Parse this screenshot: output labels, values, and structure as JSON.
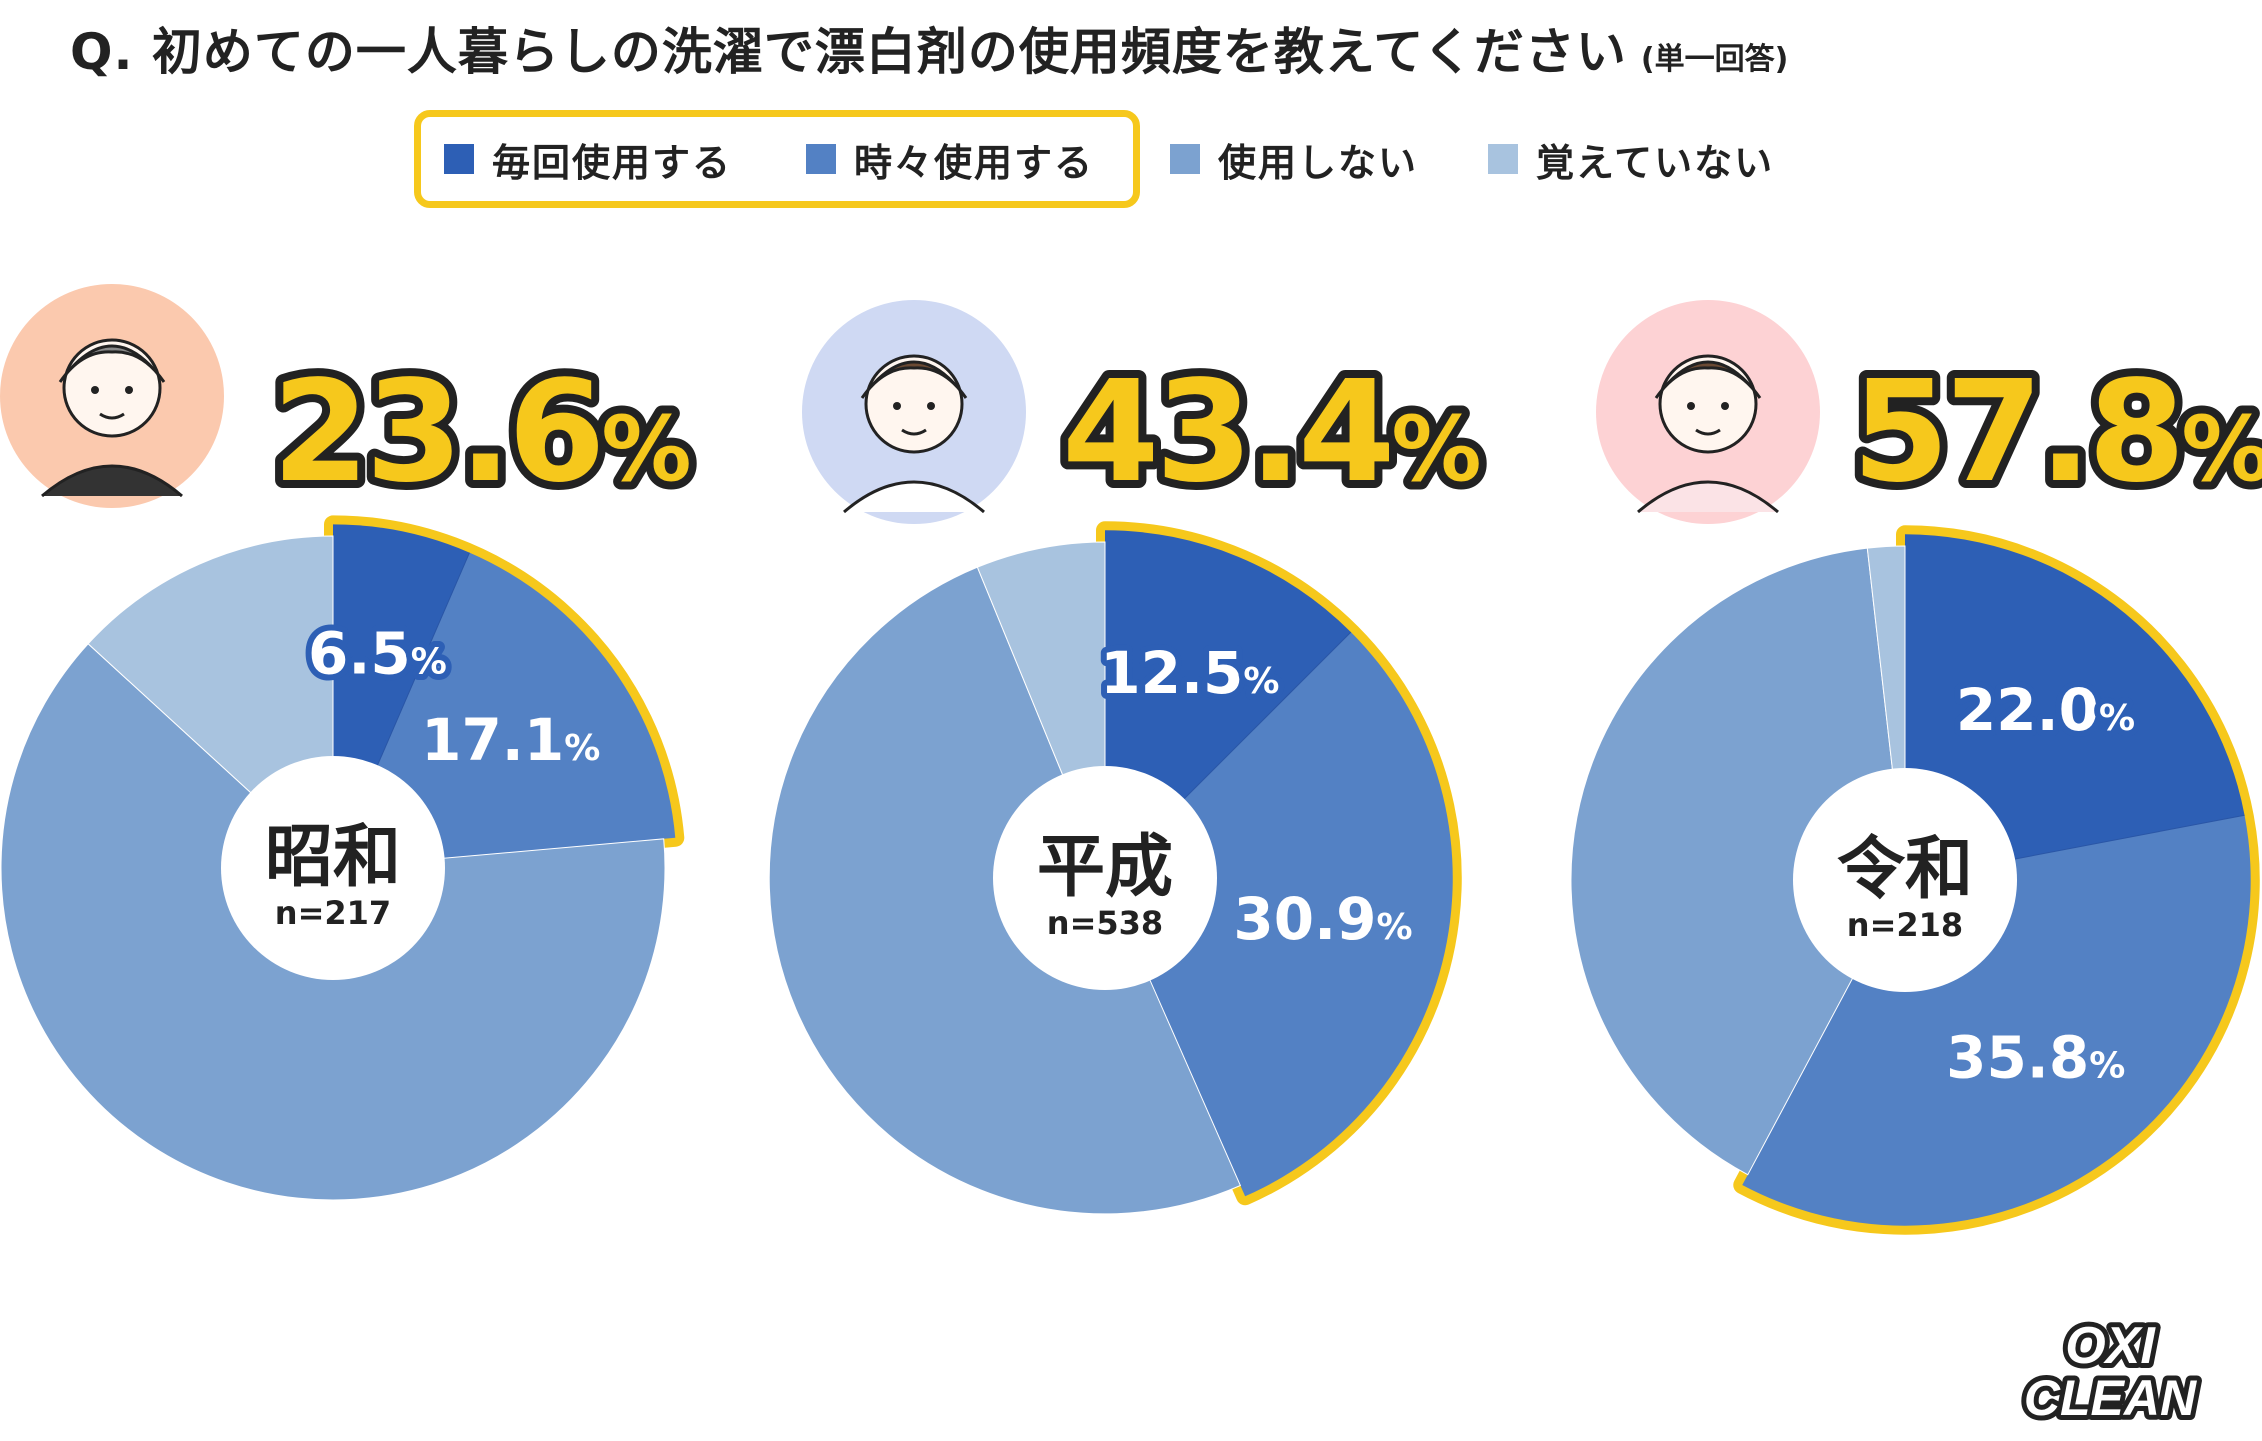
{
  "title": "Q. 初めての一人暮らしの洗濯で漂白剤の使用頻度を教えてください",
  "title_note": "(単一回答)",
  "legend": [
    {
      "label": "毎回使用する",
      "color": "#2d5fb5"
    },
    {
      "label": "時々使用する",
      "color": "#5381c4"
    },
    {
      "label": "使用しない",
      "color": "#7ca2d0"
    },
    {
      "label": "覚えていない",
      "color": "#a8c3df"
    }
  ],
  "colors": {
    "highlight": "#f6c81c",
    "big_percent_fill": "#f6c81c",
    "text_dark": "#222222"
  },
  "chart_data": [
    {
      "type": "pie",
      "era": "昭和",
      "n_label": "n=217",
      "headline_value": "23.6",
      "headline_unit": "%",
      "avatar_bg": "#fbc9ae",
      "avatar_icon": "older-man-icon",
      "slices": [
        {
          "name": "毎回使用する",
          "value": 6.5,
          "label": "6.5"
        },
        {
          "name": "時々使用する",
          "value": 17.1,
          "label": "17.1"
        },
        {
          "name": "使用しない",
          "value": 63.2,
          "label": ""
        },
        {
          "name": "覚えていない",
          "value": 13.2,
          "label": ""
        }
      ]
    },
    {
      "type": "pie",
      "era": "平成",
      "n_label": "n=538",
      "headline_value": "43.4",
      "headline_unit": "%",
      "avatar_bg": "#cfd9f3",
      "avatar_icon": "short-hair-person-icon",
      "slices": [
        {
          "name": "毎回使用する",
          "value": 12.5,
          "label": "12.5"
        },
        {
          "name": "時々使用する",
          "value": 30.9,
          "label": "30.9"
        },
        {
          "name": "使用しない",
          "value": 50.4,
          "label": ""
        },
        {
          "name": "覚えていない",
          "value": 6.2,
          "label": ""
        }
      ]
    },
    {
      "type": "pie",
      "era": "令和",
      "n_label": "n=218",
      "headline_value": "57.8",
      "headline_unit": "%",
      "avatar_bg": "#fdd2d4",
      "avatar_icon": "long-hair-woman-icon",
      "slices": [
        {
          "name": "毎回使用する",
          "value": 22.0,
          "label": "22.0"
        },
        {
          "name": "時々使用する",
          "value": 35.8,
          "label": "35.8"
        },
        {
          "name": "使用しない",
          "value": 40.4,
          "label": ""
        },
        {
          "name": "覚えていない",
          "value": 1.8,
          "label": ""
        }
      ]
    }
  ],
  "percent_sign": "%",
  "logo": {
    "line1": "OXI",
    "line2": "CLEAN",
    "icon": "oxiclean-logo"
  }
}
